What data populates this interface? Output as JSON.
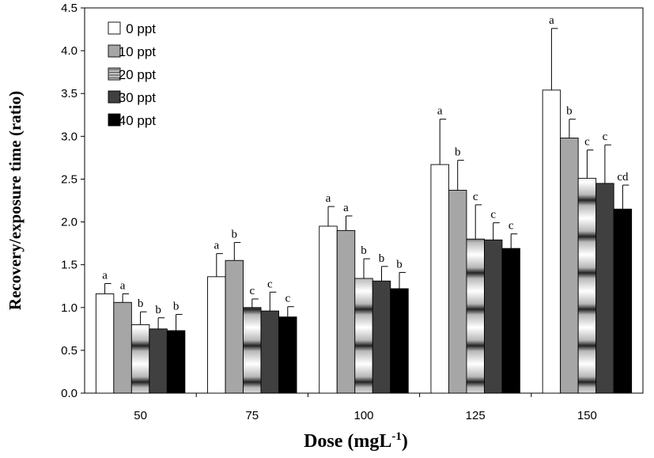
{
  "chart_data": {
    "type": "bar",
    "xlabel": "Dose (mgL",
    "xlabel_sup": "-1",
    "xlabel_end": ")",
    "ylabel": "Recovery/exposure  time (ratio)",
    "ylim": [
      0,
      4.5
    ],
    "yticks": [
      "0.0",
      "0.5",
      "1.0",
      "1.5",
      "2.0",
      "2.5",
      "3.0",
      "3.5",
      "4.0",
      "4.5"
    ],
    "categories": [
      "50",
      "75",
      "100",
      "125",
      "150"
    ],
    "legend_position": "top-left",
    "series": [
      {
        "name": "0 ppt",
        "fill": "white",
        "values": [
          1.16,
          1.36,
          1.95,
          2.67,
          3.54
        ],
        "errors": [
          0.12,
          0.27,
          0.23,
          0.53,
          0.72
        ],
        "labels": [
          "a",
          "a",
          "a",
          "a",
          "a"
        ]
      },
      {
        "name": "10 ppt",
        "fill": "#a6a6a6",
        "values": [
          1.06,
          1.55,
          1.9,
          2.37,
          2.98
        ],
        "errors": [
          0.1,
          0.21,
          0.17,
          0.35,
          0.22
        ],
        "labels": [
          "a",
          "b",
          "a",
          "b",
          "b"
        ]
      },
      {
        "name": "20 ppt",
        "fill": "gradient",
        "values": [
          0.8,
          1.0,
          1.34,
          1.8,
          2.51
        ],
        "errors": [
          0.15,
          0.1,
          0.23,
          0.4,
          0.33
        ],
        "labels": [
          "b",
          "c",
          "b",
          "c",
          "c"
        ]
      },
      {
        "name": "30 ppt",
        "fill": "#404040",
        "values": [
          0.75,
          0.96,
          1.31,
          1.79,
          2.45
        ],
        "errors": [
          0.13,
          0.22,
          0.17,
          0.2,
          0.45
        ],
        "labels": [
          "b",
          "c",
          "b",
          "c",
          "c"
        ]
      },
      {
        "name": "40 ppt",
        "fill": "#000000",
        "values": [
          0.73,
          0.89,
          1.22,
          1.69,
          2.15
        ],
        "errors": [
          0.19,
          0.12,
          0.19,
          0.17,
          0.28
        ],
        "labels": [
          "b",
          "c",
          "b",
          "c",
          "cd"
        ]
      }
    ]
  }
}
